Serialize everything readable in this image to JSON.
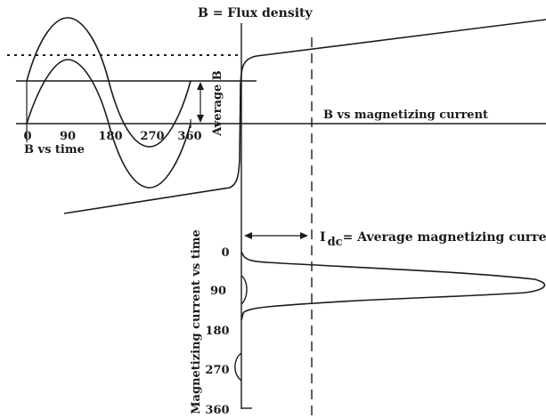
{
  "title_b": "B = Flux density",
  "average_b": "Average B",
  "b_vs_current": "B vs magnetizing current",
  "b_vs_time": "B vs time",
  "idc_symbol": "I",
  "idc_subscript": "dc",
  "idc_text": "= Average magnetizing current",
  "i_vs_time": "Magnetizing current vs time",
  "top_ticks": [
    "0",
    "90",
    "180",
    "270",
    "360"
  ],
  "side_ticks": [
    "0",
    "90",
    "180",
    "270",
    "360"
  ]
}
